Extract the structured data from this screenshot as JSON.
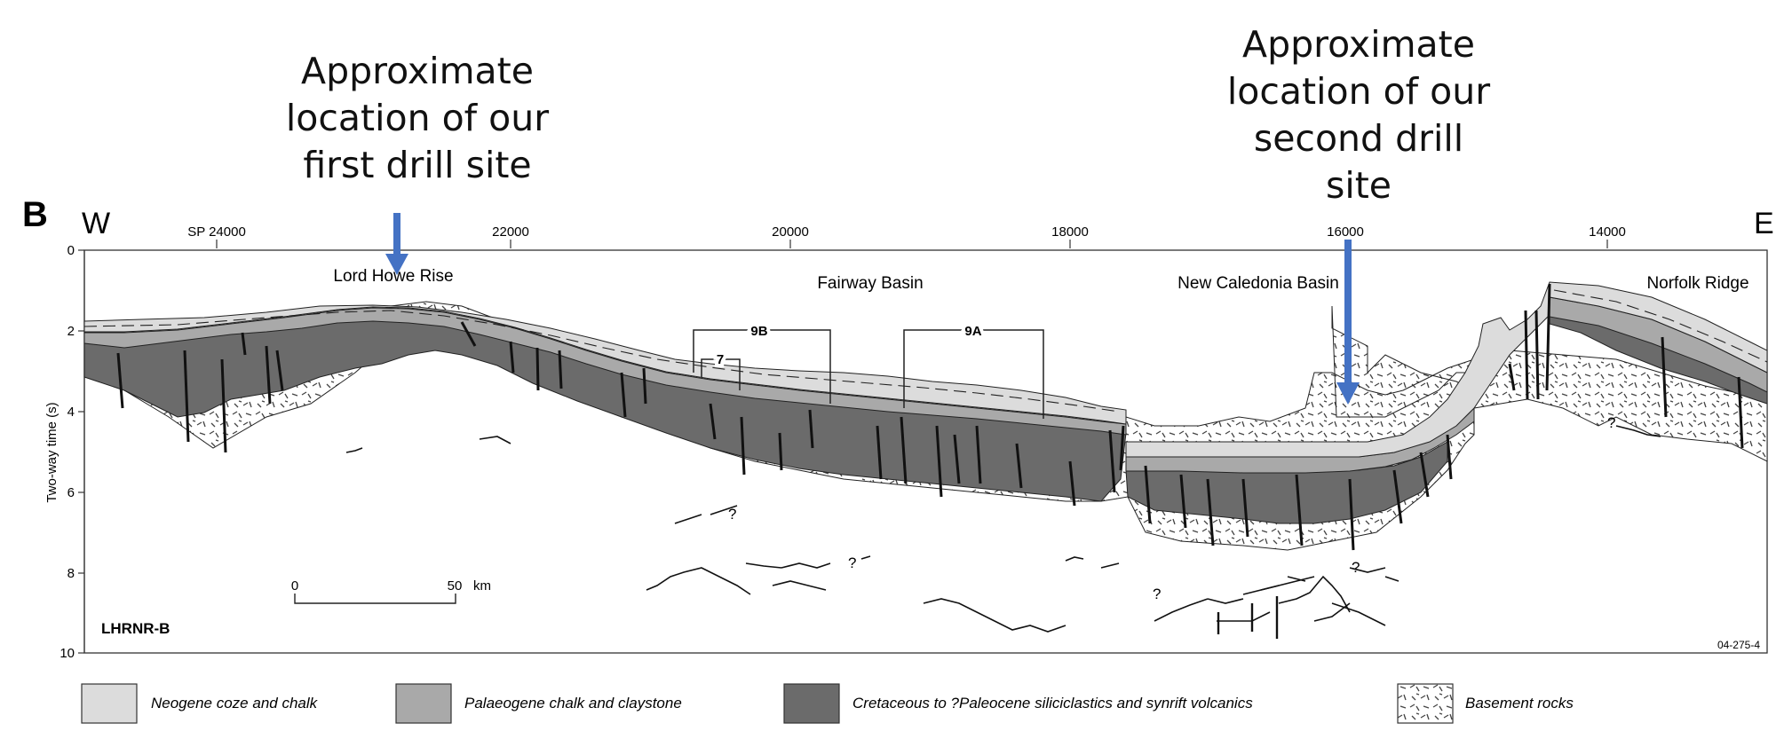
{
  "panel_label": "B",
  "annotations": {
    "first_site": [
      "Approximate",
      "location of our",
      "first drill site"
    ],
    "second_site": [
      "Approximate",
      "location of our",
      "second drill",
      "site"
    ]
  },
  "directions": {
    "west": "W",
    "east": "E"
  },
  "shotpoints": [
    "SP 24000",
    "22000",
    "20000",
    "18000",
    "16000",
    "14000"
  ],
  "y_axis": {
    "label": "Two-way time (s)",
    "ticks": [
      "0",
      "2",
      "4",
      "6",
      "8",
      "10"
    ]
  },
  "regions": [
    "Lord Howe Rise",
    "Fairway Basin",
    "New Caledonia Basin",
    "Norfolk Ridge"
  ],
  "boxes": [
    "9B",
    "7",
    "9A"
  ],
  "question_mark": "?",
  "scale_bar": {
    "start": "0",
    "end": "50",
    "unit": "km"
  },
  "line_name": "LHRNR-B",
  "figure_code": "04-275-4",
  "legend": [
    {
      "label": "Neogene coze and chalk",
      "color": "#dcdcdc"
    },
    {
      "label": "Palaeogene chalk and claystone",
      "color": "#a9a9a9"
    },
    {
      "label": "Cretaceous to ?Paleocene siliciclastics and synrift volcanics",
      "color": "#6b6b6b"
    },
    {
      "label": "Basement rocks",
      "color": "#ffffff"
    }
  ],
  "arrow_color": "#4472c4"
}
